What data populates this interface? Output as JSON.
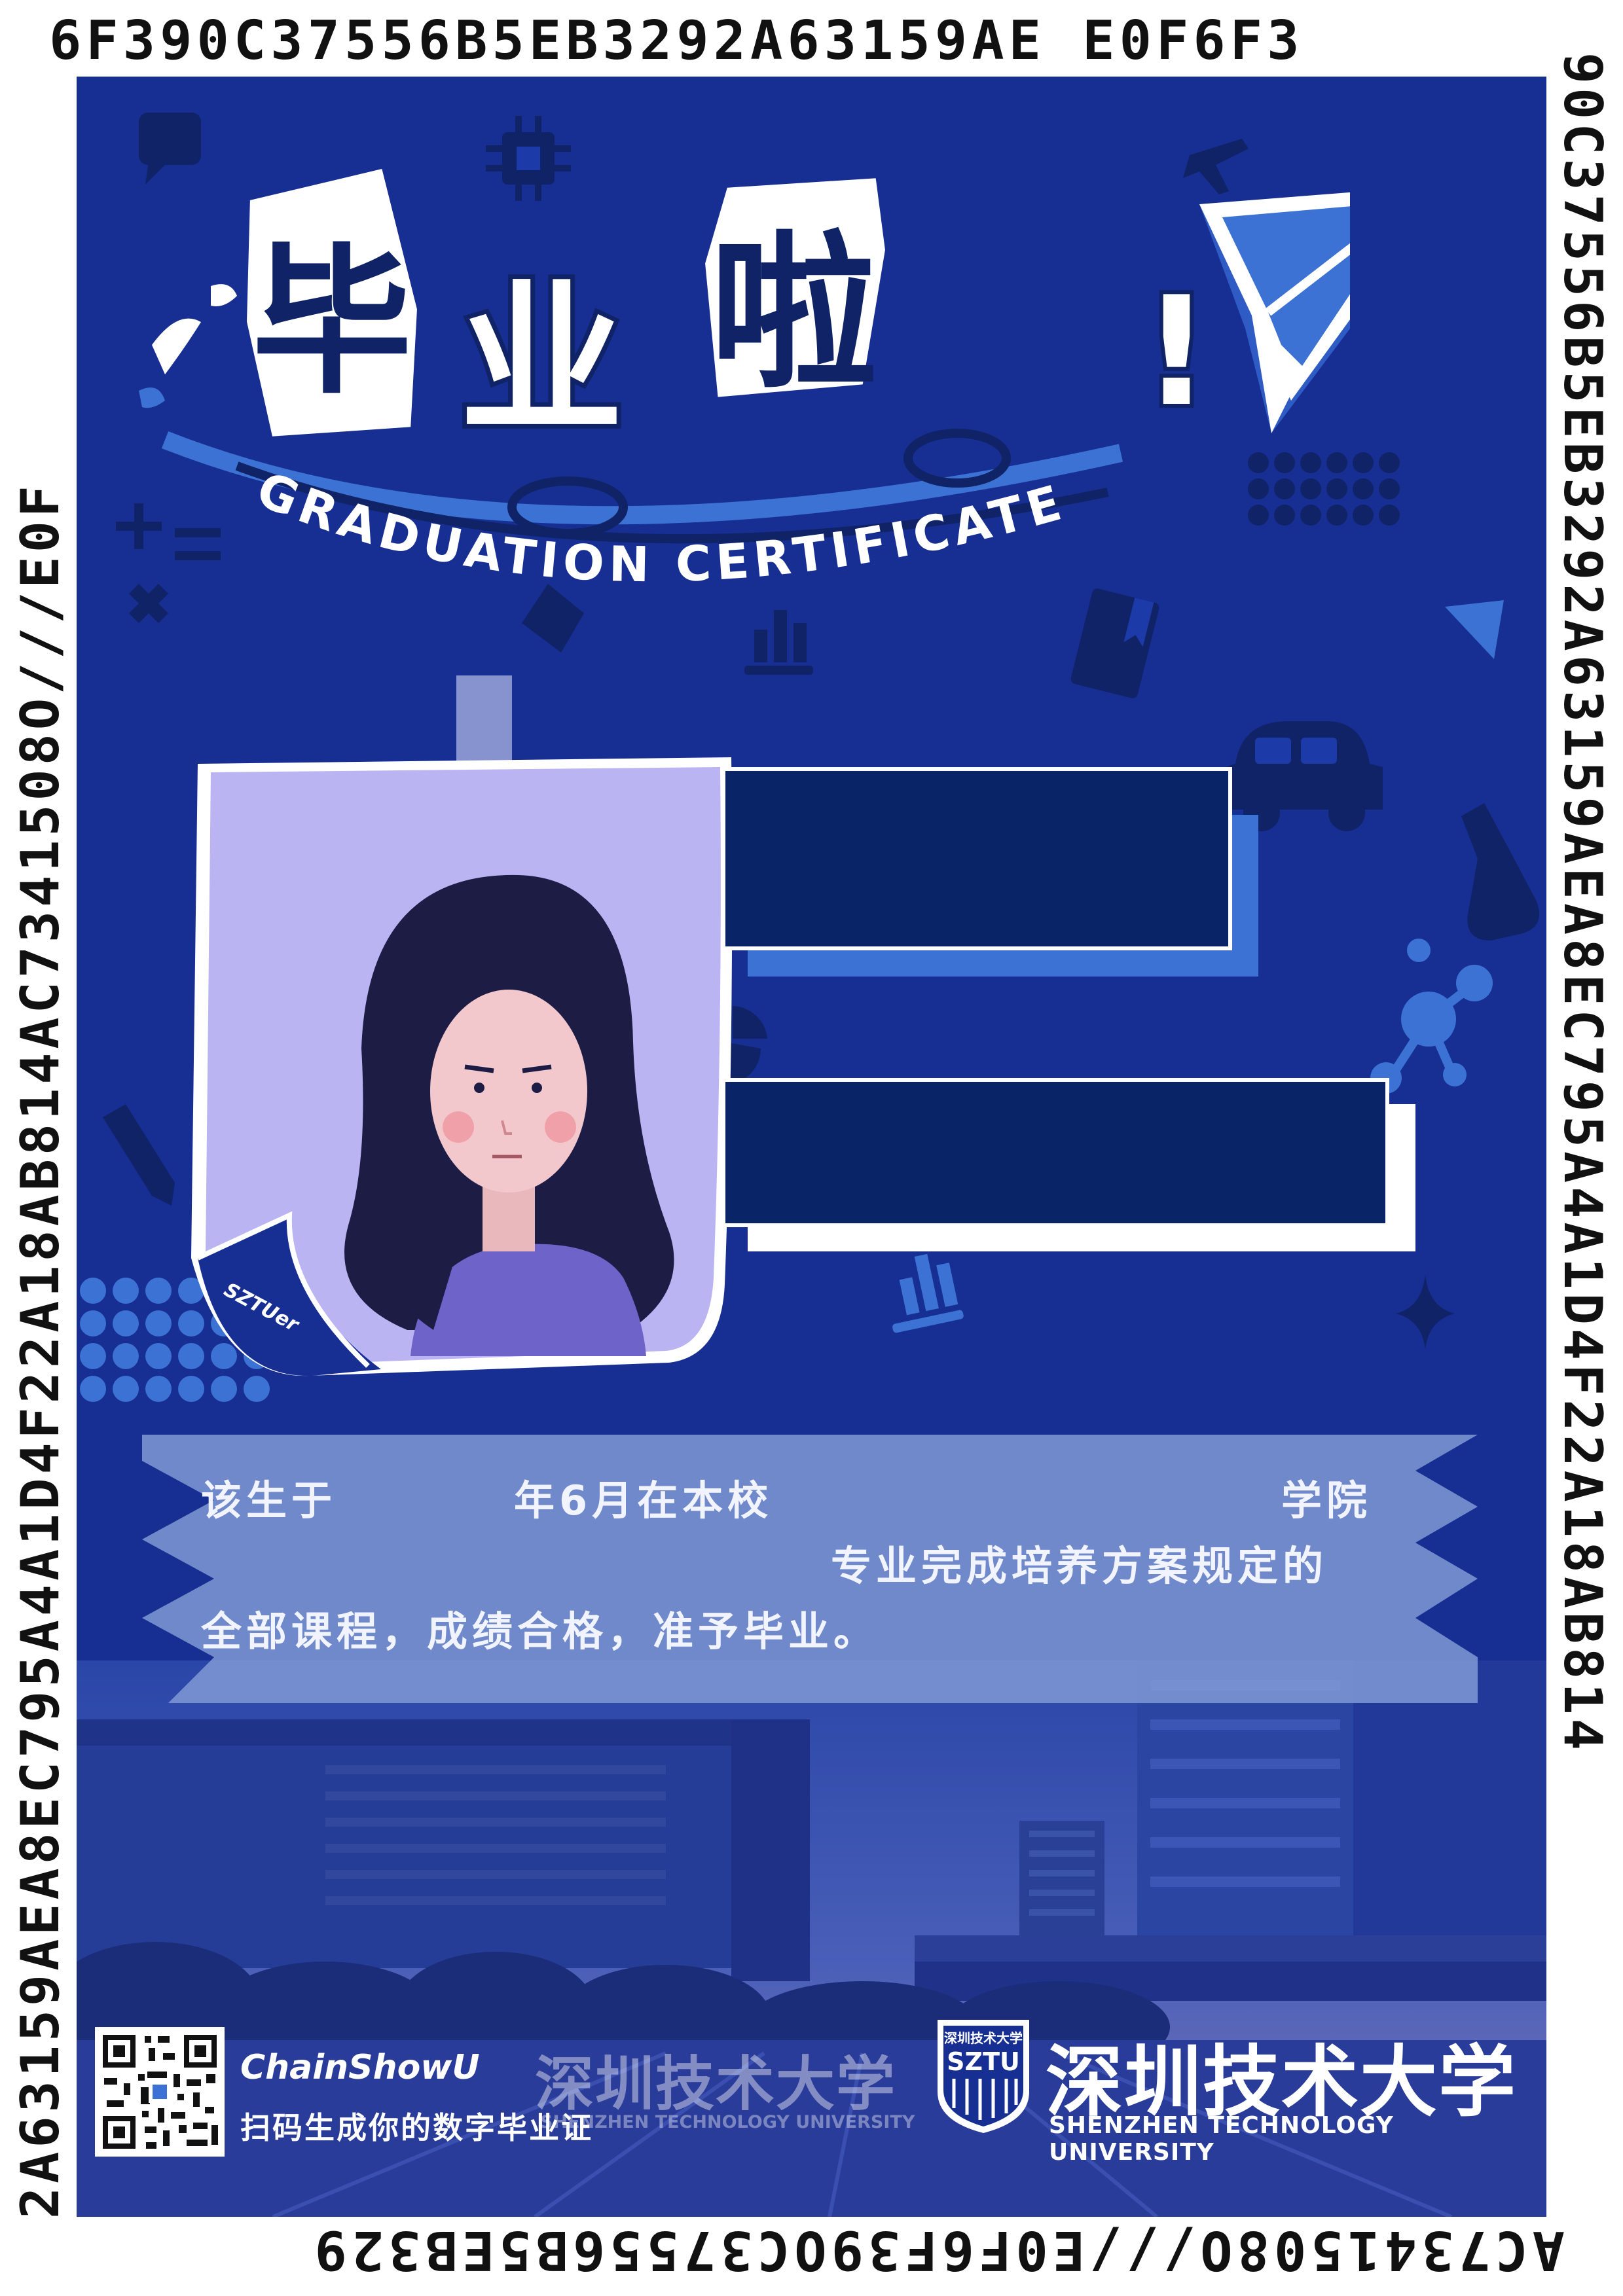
{
  "edges": {
    "top": "6F390C37556B5EB3292A63159AE E0F6F3",
    "right": "90C37556B5EB3292A63159AEA8EC795A4A1D4F22A18AB814",
    "bottom": "AC7341508O///E0F6F39OC37556B5EB329",
    "left": "2A63159AEA8EC795A4A1D4F22A18AB814AC7341508O///E0F"
  },
  "title": {
    "chars": [
      "毕",
      "业",
      "啦",
      "!"
    ],
    "subtitle_en": "GRADUATION CERTIFICATE"
  },
  "photo": {
    "tag": "SZTUer"
  },
  "statement": {
    "line1_a": "该生于",
    "line1_b": "年6月在本校",
    "line1_c": "学院",
    "line2": "专业完成培养方案规定的",
    "line3": "全部课程，成绩合格，准予毕业。"
  },
  "footer": {
    "chain_name": "ChainShowU",
    "scan_text": "扫码生成你的数字毕业证",
    "ghost_cn": "深圳技术大学",
    "ghost_en": "SHENZHEN TECHNOLOGY UNIVERSITY",
    "logo_top": "深圳技术大学",
    "logo_abbr": "SZTU",
    "university_cn": "深圳技术大学",
    "university_en": "SHENZHEN TECHNOLOGY UNIVERSITY"
  },
  "colors": {
    "panel": "#172e93",
    "accent": "#3b72d4",
    "box": "#0a2468",
    "photo_bg": "#bab4f2"
  },
  "icons": [
    "chat-bubble-icon",
    "chip-icon",
    "paper-plane-icon",
    "airplane-icon",
    "math-symbols-icon",
    "diamond-icon",
    "book-icon",
    "bar-chart-icon",
    "car-icon",
    "flask-icon",
    "molecule-icon",
    "pie-chart-icon",
    "pencil-icon",
    "sparkle-icon",
    "play-triangle-icon"
  ]
}
